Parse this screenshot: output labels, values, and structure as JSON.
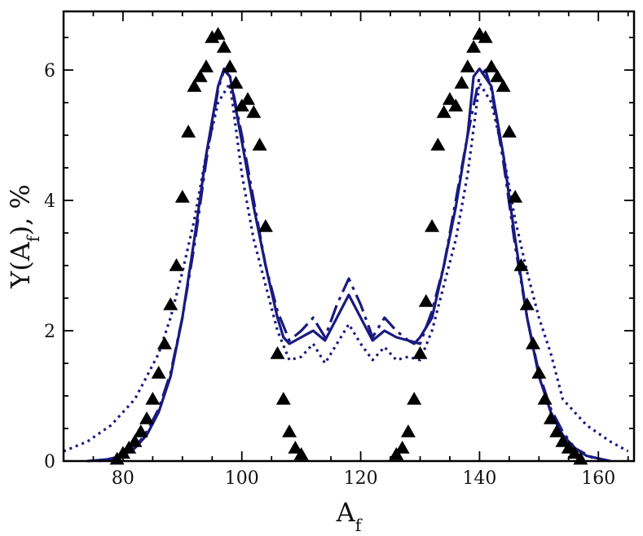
{
  "chart_data": {
    "type": "line",
    "title": "",
    "xlabel": "A_f",
    "ylabel": "Y(A_f), %",
    "xlim": [
      70,
      166
    ],
    "ylim": [
      0,
      6.9
    ],
    "xticks": [
      80,
      100,
      120,
      140,
      160
    ],
    "yticks": [
      0,
      2,
      4,
      6
    ],
    "xtick_labels": [
      "80",
      "100",
      "120",
      "140",
      "160"
    ],
    "ytick_labels": [
      "0",
      "2",
      "4",
      "6"
    ],
    "legend": "none",
    "grid": false,
    "colors": {
      "line": "#1a1a80",
      "marker": "#000000"
    },
    "series": [
      {
        "style": "solid",
        "x": [
          74,
          78,
          80,
          82,
          84,
          86,
          88,
          90,
          92,
          94,
          96,
          97,
          98,
          100,
          102,
          104,
          106,
          107,
          108,
          110,
          112,
          114,
          116,
          118,
          120,
          122,
          124,
          126,
          128,
          129,
          130,
          132,
          134,
          136,
          138,
          139,
          140,
          142,
          144,
          146,
          148,
          150,
          152,
          154,
          156,
          158,
          162
        ],
        "y": [
          0.0,
          0.03,
          0.08,
          0.2,
          0.4,
          0.75,
          1.3,
          2.2,
          3.4,
          4.7,
          5.75,
          6.02,
          5.9,
          4.9,
          3.9,
          3.0,
          2.2,
          1.9,
          1.8,
          1.9,
          2.0,
          1.85,
          2.2,
          2.55,
          2.2,
          1.85,
          2.0,
          1.9,
          1.85,
          1.8,
          1.9,
          2.2,
          3.0,
          3.9,
          5.0,
          5.9,
          6.02,
          5.75,
          4.7,
          3.4,
          2.2,
          1.3,
          0.75,
          0.4,
          0.2,
          0.08,
          0.0
        ]
      },
      {
        "style": "dashdot",
        "x": [
          76,
          80,
          82,
          84,
          86,
          88,
          90,
          92,
          94,
          96,
          97,
          98,
          100,
          102,
          104,
          106,
          108,
          110,
          112,
          114,
          116,
          118,
          120,
          122,
          124,
          126,
          128,
          130,
          132,
          134,
          136,
          138,
          140,
          141,
          142,
          144,
          146,
          148,
          150,
          152,
          154,
          156,
          160
        ],
        "y": [
          0.0,
          0.08,
          0.2,
          0.45,
          0.8,
          1.35,
          2.2,
          3.3,
          4.6,
          5.7,
          6.0,
          5.9,
          5.0,
          4.0,
          3.0,
          2.3,
          1.85,
          2.0,
          2.2,
          1.9,
          2.4,
          2.8,
          2.4,
          1.9,
          2.2,
          2.0,
          1.85,
          1.8,
          2.3,
          3.0,
          4.0,
          5.0,
          5.9,
          6.0,
          5.7,
          4.6,
          3.3,
          2.2,
          1.35,
          0.8,
          0.45,
          0.2,
          0.0
        ]
      },
      {
        "style": "dotted",
        "x": [
          70,
          74,
          78,
          82,
          86,
          88,
          90,
          92,
          94,
          96,
          98,
          100,
          102,
          104,
          106,
          108,
          110,
          112,
          114,
          116,
          118,
          120,
          122,
          124,
          126,
          128,
          130,
          132,
          134,
          136,
          138,
          140,
          142,
          144,
          146,
          148,
          150,
          152,
          154,
          158,
          162,
          165
        ],
        "y": [
          0.15,
          0.3,
          0.55,
          0.95,
          1.65,
          2.2,
          2.9,
          3.7,
          4.7,
          5.5,
          5.8,
          4.4,
          3.4,
          2.7,
          2.0,
          1.55,
          1.6,
          1.8,
          1.5,
          1.8,
          2.1,
          1.8,
          1.55,
          1.75,
          1.55,
          1.6,
          1.55,
          2.0,
          2.7,
          3.4,
          4.4,
          5.8,
          5.5,
          4.7,
          3.7,
          2.9,
          2.2,
          1.65,
          0.95,
          0.55,
          0.3,
          0.15
        ]
      },
      {
        "style": "markers",
        "marker": "triangle",
        "x": [
          79,
          80,
          81,
          82,
          83,
          84,
          85,
          86,
          87,
          88,
          89,
          90,
          91,
          92,
          93,
          94,
          95,
          96,
          97,
          98,
          99,
          100,
          101,
          102,
          103,
          104,
          106,
          107,
          108,
          109,
          110,
          126,
          127,
          128,
          129,
          130,
          131,
          132,
          133,
          134,
          135,
          136,
          137,
          138,
          139,
          140,
          141,
          142,
          143,
          144,
          145,
          146,
          147,
          148,
          149,
          150,
          151,
          152,
          153,
          154,
          155,
          156,
          157
        ],
        "y": [
          0.03,
          0.12,
          0.2,
          0.3,
          0.45,
          0.65,
          0.95,
          1.35,
          1.8,
          2.4,
          3.0,
          4.05,
          5.05,
          5.75,
          5.9,
          6.05,
          6.5,
          6.55,
          6.35,
          6.05,
          5.8,
          5.45,
          5.55,
          5.35,
          4.85,
          3.6,
          1.65,
          0.95,
          0.45,
          0.2,
          0.1,
          0.1,
          0.2,
          0.45,
          0.95,
          1.65,
          2.45,
          3.6,
          4.85,
          5.35,
          5.55,
          5.45,
          5.8,
          6.05,
          6.35,
          6.55,
          6.5,
          6.05,
          5.9,
          5.75,
          5.05,
          4.05,
          3.0,
          2.4,
          1.8,
          1.35,
          0.95,
          0.65,
          0.45,
          0.3,
          0.2,
          0.12,
          0.03
        ]
      }
    ]
  }
}
